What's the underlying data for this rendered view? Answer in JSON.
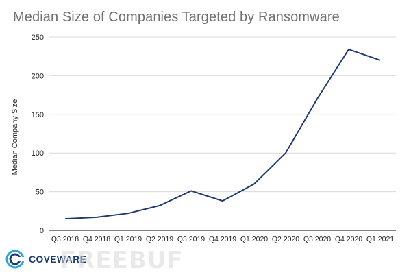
{
  "chart_data": {
    "type": "line",
    "title": "Median Size of Companies Targeted by Ransomware",
    "xlabel": "",
    "ylabel": "Median Company Size",
    "categories": [
      "Q3 2018",
      "Q4 2018",
      "Q1 2019",
      "Q2 2019",
      "Q3 2019",
      "Q4 2019",
      "Q1 2020",
      "Q2 2020",
      "Q3 2020",
      "Q4 2020",
      "Q1 2021"
    ],
    "series": [
      {
        "name": "Median Company Size",
        "values": [
          15,
          17,
          22,
          32,
          51,
          38,
          60,
          100,
          170,
          234,
          220
        ]
      }
    ],
    "ylim": [
      0,
      250
    ],
    "yticks": [
      0,
      50,
      100,
      150,
      200,
      250
    ],
    "grid": true,
    "colors": {
      "line": "#1f3b6e",
      "grid": "#d9d9d9",
      "axis": "#333333"
    }
  },
  "branding": {
    "logo_text": "COVEWARE",
    "watermark": "FREEBUF"
  }
}
